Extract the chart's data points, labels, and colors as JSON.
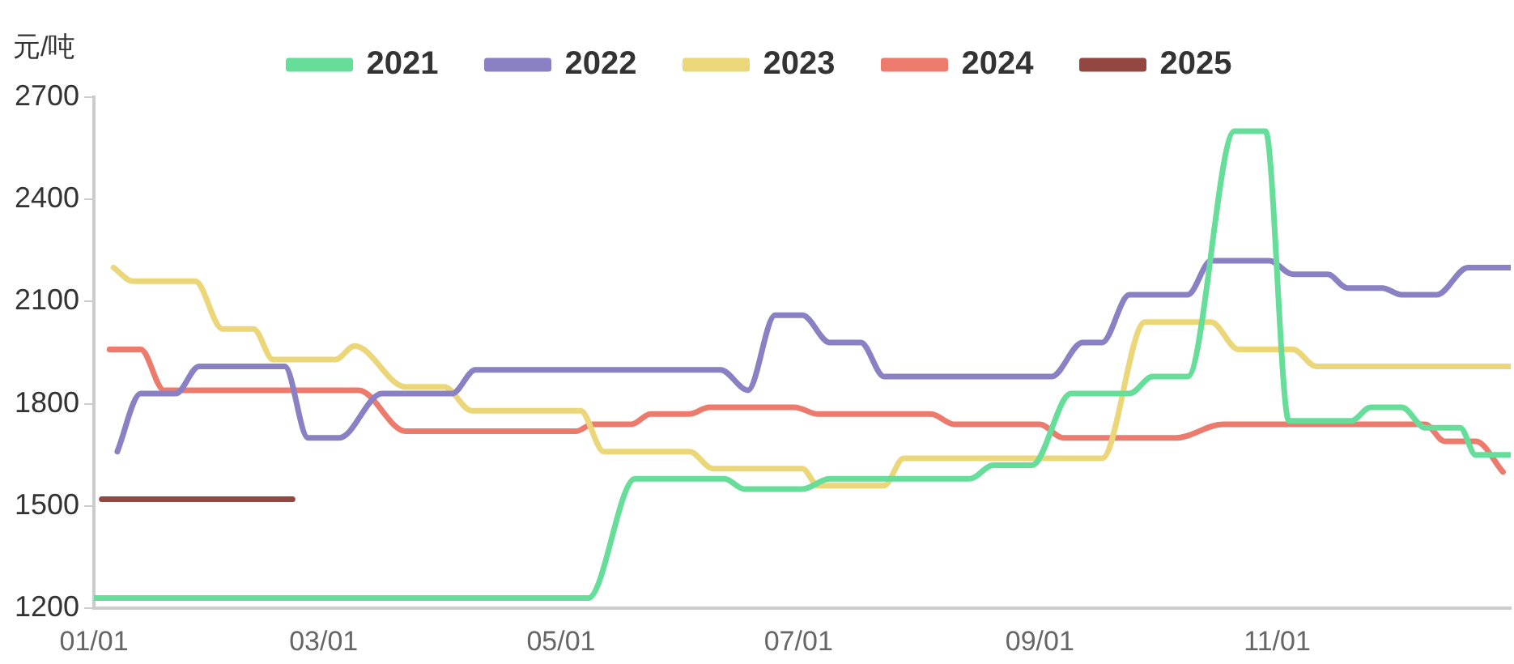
{
  "chart_data": {
    "type": "line",
    "ylabel": "元/吨",
    "legend": "top",
    "marker": "none",
    "line_style": "solid",
    "grid": false,
    "xlim": [
      "--01-01",
      "--12-31"
    ],
    "xticks": [
      {
        "value": "--01-01",
        "label": "01/01"
      },
      {
        "value": "--03-01",
        "label": "03/01"
      },
      {
        "value": "--05-01",
        "label": "05/01"
      },
      {
        "value": "--07-01",
        "label": "07/01"
      },
      {
        "value": "--09-01",
        "label": "09/01"
      },
      {
        "value": "--11-01",
        "label": "11/01"
      }
    ],
    "ylim": [
      1200,
      2700
    ],
    "yticks": [
      1200,
      1500,
      1800,
      2100,
      2400,
      2700
    ],
    "series": [
      {
        "name": "2021",
        "color": "#66dd99",
        "x": [
          "--01-01",
          "--05-08",
          "--05-20",
          "--06-12",
          "--06-17",
          "--07-02",
          "--07-09",
          "--08-14",
          "--08-20",
          "--08-30",
          "--09-09",
          "--09-24",
          "--09-30",
          "--10-09",
          "--10-21",
          "--10-29",
          "--11-04",
          "--11-20",
          "--11-25",
          "--12-03",
          "--12-09",
          "--12-18",
          "--12-22",
          "--12-31"
        ],
        "values": [
          1230,
          1230,
          1580,
          1580,
          1550,
          1550,
          1580,
          1580,
          1620,
          1620,
          1830,
          1830,
          1880,
          1880,
          2600,
          2600,
          1750,
          1750,
          1790,
          1790,
          1730,
          1730,
          1650,
          1650
        ]
      },
      {
        "name": "2022",
        "color": "#8a80c4",
        "x": [
          "--01-07",
          "--01-13",
          "--01-22",
          "--01-28",
          "--02-19",
          "--02-25",
          "--03-05",
          "--03-16",
          "--04-03",
          "--04-09",
          "--06-11",
          "--06-18",
          "--06-25",
          "--07-02",
          "--07-09",
          "--07-17",
          "--07-23",
          "--09-04",
          "--09-12",
          "--09-17",
          "--09-24",
          "--10-09",
          "--10-15",
          "--10-30",
          "--11-05",
          "--11-14",
          "--11-19",
          "--11-28",
          "--12-03",
          "--12-12",
          "--12-20",
          "--12-31"
        ],
        "values": [
          1660,
          1830,
          1830,
          1910,
          1910,
          1700,
          1700,
          1830,
          1830,
          1900,
          1900,
          1840,
          2060,
          2060,
          1980,
          1980,
          1880,
          1880,
          1980,
          1980,
          2120,
          2120,
          2220,
          2220,
          2180,
          2180,
          2140,
          2140,
          2120,
          2120,
          2200,
          2200
        ]
      },
      {
        "name": "2023",
        "color": "#ecd67a",
        "x": [
          "--01-06",
          "--01-11",
          "--01-27",
          "--02-03",
          "--02-11",
          "--02-16",
          "--03-04",
          "--03-09",
          "--03-22",
          "--04-01",
          "--04-08",
          "--05-06",
          "--05-12",
          "--06-03",
          "--06-09",
          "--07-02",
          "--07-06",
          "--07-23",
          "--07-28",
          "--09-17",
          "--09-28",
          "--10-15",
          "--10-22",
          "--11-05",
          "--11-11",
          "--12-31"
        ],
        "values": [
          2200,
          2160,
          2160,
          2020,
          2020,
          1930,
          1930,
          1970,
          1850,
          1850,
          1780,
          1780,
          1660,
          1660,
          1610,
          1610,
          1560,
          1560,
          1640,
          1640,
          2040,
          2040,
          1960,
          1960,
          1910,
          1910
        ]
      },
      {
        "name": "2024",
        "color": "#ec7b6e",
        "x": [
          "--01-05",
          "--01-13",
          "--01-19",
          "--03-10",
          "--03-22",
          "--05-05",
          "--05-09",
          "--05-19",
          "--05-24",
          "--06-03",
          "--06-08",
          "--06-30",
          "--07-06",
          "--08-04",
          "--08-10",
          "--09-01",
          "--09-07",
          "--10-06",
          "--10-18",
          "--12-09",
          "--12-14",
          "--12-22",
          "--12-29"
        ],
        "values": [
          1960,
          1960,
          1840,
          1840,
          1720,
          1720,
          1740,
          1740,
          1770,
          1770,
          1790,
          1790,
          1770,
          1770,
          1740,
          1740,
          1700,
          1700,
          1740,
          1740,
          1690,
          1690,
          1600
        ]
      },
      {
        "name": "2025",
        "color": "#934740",
        "x": [
          "--01-03",
          "--02-21"
        ],
        "values": [
          1520,
          1520
        ]
      }
    ]
  }
}
